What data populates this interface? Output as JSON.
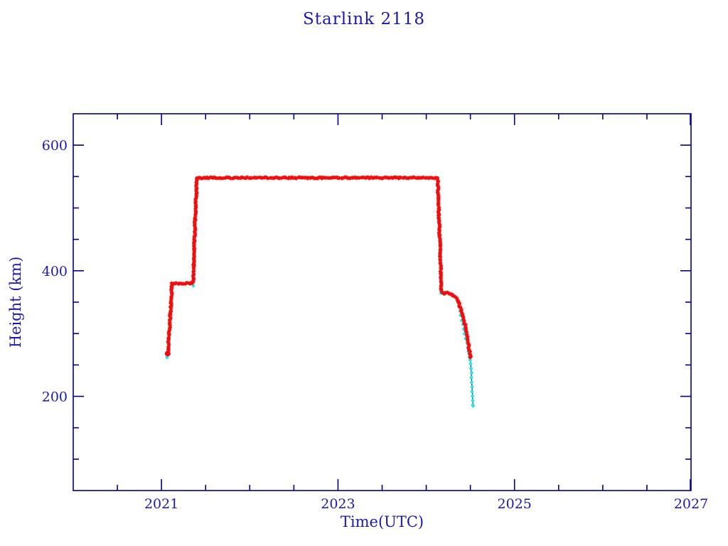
{
  "chart_data": {
    "type": "scatter",
    "title": "Starlink 2118",
    "xlabel": "Time(UTC)",
    "ylabel": "Height (km)",
    "xlim": [
      2020,
      2027
    ],
    "ylim": [
      50,
      650
    ],
    "x_major_ticks": [
      2021,
      2023,
      2025,
      2027
    ],
    "x_minor_step": 0.5,
    "y_major_ticks": [
      200,
      400,
      600
    ],
    "y_minor_step": 50,
    "grid": false,
    "legend_position": "none",
    "colors": {
      "axis": "#000080",
      "text": "#1a1ab0",
      "apogee_marker": "#f20d0d",
      "perigee_marker": "#2ee3e3",
      "trajectory_line": "#000080",
      "background": "#ffffff"
    },
    "series": [
      {
        "name": "height-red-markers",
        "role": "apogee-height",
        "marker": "asterisk",
        "points": [
          [
            2021.07,
            268
          ],
          [
            2021.09,
            305
          ],
          [
            2021.12,
            380
          ],
          [
            2021.36,
            380
          ],
          [
            2021.375,
            455
          ],
          [
            2021.4,
            548
          ],
          [
            2024.13,
            548
          ],
          [
            2024.15,
            460
          ],
          [
            2024.17,
            368
          ],
          [
            2024.19,
            363
          ],
          [
            2024.23,
            365
          ],
          [
            2024.28,
            363
          ],
          [
            2024.33,
            358
          ],
          [
            2024.37,
            349
          ],
          [
            2024.41,
            331
          ],
          [
            2024.44,
            313
          ],
          [
            2024.47,
            291
          ],
          [
            2024.5,
            263
          ]
        ]
      },
      {
        "name": "height-cyan-markers",
        "role": "perigee-height",
        "marker": "asterisk",
        "segments": [
          [
            [
              2021.068,
              262
            ],
            [
              2021.118,
              374
            ]
          ],
          [
            [
              2021.358,
              376
            ],
            [
              2021.398,
              540
            ]
          ],
          [
            [
              2024.132,
              543
            ],
            [
              2024.172,
              365
            ]
          ],
          [
            [
              2024.36,
              350
            ],
            [
              2024.5,
              258
            ]
          ],
          [
            [
              2024.505,
              252
            ],
            [
              2024.53,
              185
            ]
          ]
        ]
      },
      {
        "name": "trajectory-line",
        "role": "connecting-line",
        "points": [
          [
            2021.07,
            268
          ],
          [
            2021.12,
            380
          ],
          [
            2021.36,
            380
          ],
          [
            2021.4,
            548
          ],
          [
            2024.13,
            548
          ],
          [
            2024.17,
            368
          ],
          [
            2024.28,
            363
          ],
          [
            2024.33,
            358
          ],
          [
            2024.41,
            331
          ],
          [
            2024.47,
            291
          ],
          [
            2024.5,
            263
          ],
          [
            2024.53,
            185
          ]
        ]
      }
    ]
  }
}
